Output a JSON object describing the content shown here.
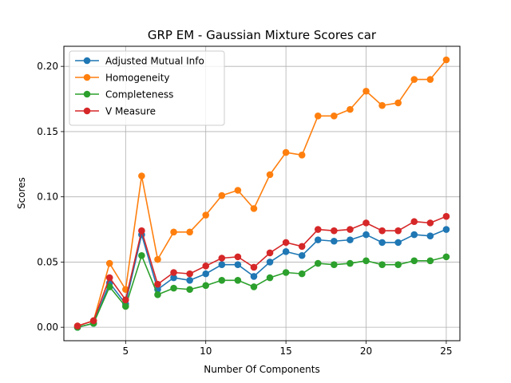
{
  "chart_data": {
    "type": "line",
    "title": "GRP EM - Gaussian Mixture Scores car",
    "xlabel": "Number Of Components",
    "ylabel": "Scores",
    "xlim": [
      1.15,
      25.85
    ],
    "ylim": [
      -0.0103,
      0.2154
    ],
    "xticks": [
      5,
      10,
      15,
      20,
      25
    ],
    "yticks": [
      0.0,
      0.05,
      0.1,
      0.15,
      0.2
    ],
    "xtick_labels": [
      "5",
      "10",
      "15",
      "20",
      "25"
    ],
    "ytick_labels": [
      "0.00",
      "0.05",
      "0.10",
      "0.15",
      "0.20"
    ],
    "grid": true,
    "legend_position": "upper-left",
    "x": [
      2,
      3,
      4,
      5,
      6,
      7,
      8,
      9,
      10,
      11,
      12,
      13,
      14,
      15,
      16,
      17,
      18,
      19,
      20,
      21,
      22,
      23,
      24,
      25
    ],
    "series": [
      {
        "name": "Adjusted Mutual Info",
        "color": "#1f77b4",
        "values": [
          0.0,
          0.003,
          0.034,
          0.018,
          0.071,
          0.029,
          0.038,
          0.036,
          0.041,
          0.048,
          0.048,
          0.039,
          0.05,
          0.058,
          0.055,
          0.067,
          0.066,
          0.067,
          0.071,
          0.065,
          0.065,
          0.071,
          0.07,
          0.075
        ]
      },
      {
        "name": "Homogeneity",
        "color": "#ff7f0e",
        "values": [
          0.001,
          0.005,
          0.049,
          0.029,
          0.116,
          0.052,
          0.073,
          0.073,
          0.086,
          0.101,
          0.105,
          0.091,
          0.117,
          0.134,
          0.132,
          0.162,
          0.162,
          0.167,
          0.181,
          0.17,
          0.172,
          0.19,
          0.19,
          0.205
        ]
      },
      {
        "name": "Completeness",
        "color": "#2ca02c",
        "values": [
          0.0,
          0.003,
          0.031,
          0.016,
          0.055,
          0.025,
          0.03,
          0.029,
          0.032,
          0.036,
          0.036,
          0.031,
          0.038,
          0.042,
          0.041,
          0.049,
          0.048,
          0.049,
          0.051,
          0.048,
          0.048,
          0.051,
          0.051,
          0.054
        ]
      },
      {
        "name": "V Measure",
        "color": "#d62728",
        "values": [
          0.001,
          0.005,
          0.038,
          0.021,
          0.074,
          0.033,
          0.042,
          0.041,
          0.047,
          0.053,
          0.054,
          0.046,
          0.057,
          0.065,
          0.062,
          0.075,
          0.074,
          0.075,
          0.08,
          0.074,
          0.074,
          0.081,
          0.08,
          0.085
        ]
      }
    ]
  }
}
